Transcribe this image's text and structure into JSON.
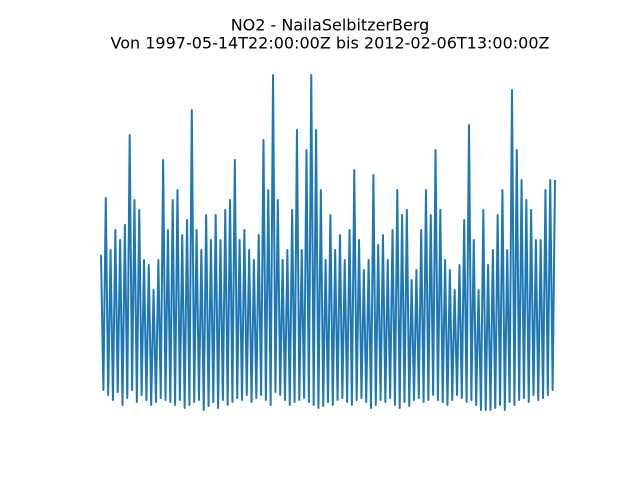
{
  "chart_data": {
    "type": "line",
    "title": "NO2 - NailaSelbitzerBerg",
    "subtitle": "Von 1997-05-14T22:00:00Z bis 2012-02-06T13:00:00Z",
    "color": "#1f77b4",
    "ylim": [
      0,
      350
    ],
    "values": [
      165,
      30,
      222,
      25,
      170,
      20,
      190,
      28,
      180,
      15,
      195,
      22,
      285,
      30,
      220,
      18,
      210,
      25,
      160,
      20,
      155,
      15,
      130,
      18,
      160,
      22,
      260,
      20,
      190,
      18,
      220,
      15,
      230,
      20,
      185,
      12,
      200,
      15,
      310,
      18,
      190,
      20,
      170,
      10,
      205,
      14,
      180,
      18,
      205,
      12,
      180,
      20,
      210,
      15,
      220,
      18,
      260,
      22,
      180,
      20,
      190,
      25,
      170,
      18,
      160,
      22,
      185,
      25,
      280,
      20,
      230,
      15,
      345,
      28,
      220,
      25,
      160,
      20,
      170,
      15,
      210,
      18,
      290,
      20,
      170,
      22,
      270,
      18,
      345,
      15,
      290,
      12,
      230,
      14,
      160,
      18,
      205,
      15,
      170,
      20,
      185,
      22,
      160,
      18,
      190,
      15,
      250,
      20,
      180,
      22,
      150,
      18,
      160,
      12,
      245,
      15,
      175,
      20,
      185,
      18,
      160,
      22,
      190,
      15,
      230,
      12,
      205,
      18,
      210,
      14,
      140,
      20,
      150,
      22,
      190,
      18,
      230,
      20,
      205,
      25,
      270,
      20,
      210,
      18,
      160,
      15,
      150,
      20,
      130,
      25,
      155,
      22,
      200,
      18,
      295,
      20,
      180,
      15,
      130,
      10,
      210,
      10,
      155,
      10,
      170,
      12,
      205,
      15,
      230,
      10,
      170,
      18,
      330,
      15,
      270,
      20,
      240,
      22,
      220,
      18,
      210,
      25,
      180,
      20,
      180,
      22,
      230,
      25,
      240,
      30,
      240
    ]
  }
}
